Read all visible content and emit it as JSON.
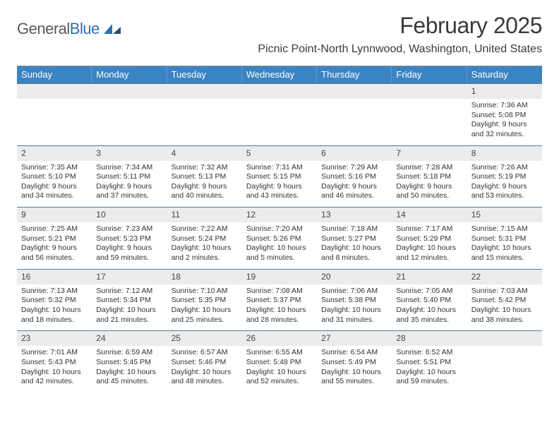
{
  "logo": {
    "word1": "General",
    "word2": "Blue"
  },
  "title": "February 2025",
  "location": "Picnic Point-North Lynnwood, Washington, United States",
  "colors": {
    "header_bar": "#3b84c4",
    "daynum_bg": "#ececec",
    "row_border": "#5a7a99",
    "text": "#333333",
    "logo_gray": "#5a5a5a",
    "logo_blue": "#2e6fb5"
  },
  "dow": [
    "Sunday",
    "Monday",
    "Tuesday",
    "Wednesday",
    "Thursday",
    "Friday",
    "Saturday"
  ],
  "weeks": [
    [
      {
        "n": "",
        "sunrise": "",
        "sunset": "",
        "daylight": ""
      },
      {
        "n": "",
        "sunrise": "",
        "sunset": "",
        "daylight": ""
      },
      {
        "n": "",
        "sunrise": "",
        "sunset": "",
        "daylight": ""
      },
      {
        "n": "",
        "sunrise": "",
        "sunset": "",
        "daylight": ""
      },
      {
        "n": "",
        "sunrise": "",
        "sunset": "",
        "daylight": ""
      },
      {
        "n": "",
        "sunrise": "",
        "sunset": "",
        "daylight": ""
      },
      {
        "n": "1",
        "sunrise": "Sunrise: 7:36 AM",
        "sunset": "Sunset: 5:08 PM",
        "daylight": "Daylight: 9 hours and 32 minutes."
      }
    ],
    [
      {
        "n": "2",
        "sunrise": "Sunrise: 7:35 AM",
        "sunset": "Sunset: 5:10 PM",
        "daylight": "Daylight: 9 hours and 34 minutes."
      },
      {
        "n": "3",
        "sunrise": "Sunrise: 7:34 AM",
        "sunset": "Sunset: 5:11 PM",
        "daylight": "Daylight: 9 hours and 37 minutes."
      },
      {
        "n": "4",
        "sunrise": "Sunrise: 7:32 AM",
        "sunset": "Sunset: 5:13 PM",
        "daylight": "Daylight: 9 hours and 40 minutes."
      },
      {
        "n": "5",
        "sunrise": "Sunrise: 7:31 AM",
        "sunset": "Sunset: 5:15 PM",
        "daylight": "Daylight: 9 hours and 43 minutes."
      },
      {
        "n": "6",
        "sunrise": "Sunrise: 7:29 AM",
        "sunset": "Sunset: 5:16 PM",
        "daylight": "Daylight: 9 hours and 46 minutes."
      },
      {
        "n": "7",
        "sunrise": "Sunrise: 7:28 AM",
        "sunset": "Sunset: 5:18 PM",
        "daylight": "Daylight: 9 hours and 50 minutes."
      },
      {
        "n": "8",
        "sunrise": "Sunrise: 7:26 AM",
        "sunset": "Sunset: 5:19 PM",
        "daylight": "Daylight: 9 hours and 53 minutes."
      }
    ],
    [
      {
        "n": "9",
        "sunrise": "Sunrise: 7:25 AM",
        "sunset": "Sunset: 5:21 PM",
        "daylight": "Daylight: 9 hours and 56 minutes."
      },
      {
        "n": "10",
        "sunrise": "Sunrise: 7:23 AM",
        "sunset": "Sunset: 5:23 PM",
        "daylight": "Daylight: 9 hours and 59 minutes."
      },
      {
        "n": "11",
        "sunrise": "Sunrise: 7:22 AM",
        "sunset": "Sunset: 5:24 PM",
        "daylight": "Daylight: 10 hours and 2 minutes."
      },
      {
        "n": "12",
        "sunrise": "Sunrise: 7:20 AM",
        "sunset": "Sunset: 5:26 PM",
        "daylight": "Daylight: 10 hours and 5 minutes."
      },
      {
        "n": "13",
        "sunrise": "Sunrise: 7:18 AM",
        "sunset": "Sunset: 5:27 PM",
        "daylight": "Daylight: 10 hours and 8 minutes."
      },
      {
        "n": "14",
        "sunrise": "Sunrise: 7:17 AM",
        "sunset": "Sunset: 5:29 PM",
        "daylight": "Daylight: 10 hours and 12 minutes."
      },
      {
        "n": "15",
        "sunrise": "Sunrise: 7:15 AM",
        "sunset": "Sunset: 5:31 PM",
        "daylight": "Daylight: 10 hours and 15 minutes."
      }
    ],
    [
      {
        "n": "16",
        "sunrise": "Sunrise: 7:13 AM",
        "sunset": "Sunset: 5:32 PM",
        "daylight": "Daylight: 10 hours and 18 minutes."
      },
      {
        "n": "17",
        "sunrise": "Sunrise: 7:12 AM",
        "sunset": "Sunset: 5:34 PM",
        "daylight": "Daylight: 10 hours and 21 minutes."
      },
      {
        "n": "18",
        "sunrise": "Sunrise: 7:10 AM",
        "sunset": "Sunset: 5:35 PM",
        "daylight": "Daylight: 10 hours and 25 minutes."
      },
      {
        "n": "19",
        "sunrise": "Sunrise: 7:08 AM",
        "sunset": "Sunset: 5:37 PM",
        "daylight": "Daylight: 10 hours and 28 minutes."
      },
      {
        "n": "20",
        "sunrise": "Sunrise: 7:06 AM",
        "sunset": "Sunset: 5:38 PM",
        "daylight": "Daylight: 10 hours and 31 minutes."
      },
      {
        "n": "21",
        "sunrise": "Sunrise: 7:05 AM",
        "sunset": "Sunset: 5:40 PM",
        "daylight": "Daylight: 10 hours and 35 minutes."
      },
      {
        "n": "22",
        "sunrise": "Sunrise: 7:03 AM",
        "sunset": "Sunset: 5:42 PM",
        "daylight": "Daylight: 10 hours and 38 minutes."
      }
    ],
    [
      {
        "n": "23",
        "sunrise": "Sunrise: 7:01 AM",
        "sunset": "Sunset: 5:43 PM",
        "daylight": "Daylight: 10 hours and 42 minutes."
      },
      {
        "n": "24",
        "sunrise": "Sunrise: 6:59 AM",
        "sunset": "Sunset: 5:45 PM",
        "daylight": "Daylight: 10 hours and 45 minutes."
      },
      {
        "n": "25",
        "sunrise": "Sunrise: 6:57 AM",
        "sunset": "Sunset: 5:46 PM",
        "daylight": "Daylight: 10 hours and 48 minutes."
      },
      {
        "n": "26",
        "sunrise": "Sunrise: 6:55 AM",
        "sunset": "Sunset: 5:48 PM",
        "daylight": "Daylight: 10 hours and 52 minutes."
      },
      {
        "n": "27",
        "sunrise": "Sunrise: 6:54 AM",
        "sunset": "Sunset: 5:49 PM",
        "daylight": "Daylight: 10 hours and 55 minutes."
      },
      {
        "n": "28",
        "sunrise": "Sunrise: 6:52 AM",
        "sunset": "Sunset: 5:51 PM",
        "daylight": "Daylight: 10 hours and 59 minutes."
      },
      {
        "n": "",
        "sunrise": "",
        "sunset": "",
        "daylight": ""
      }
    ]
  ]
}
